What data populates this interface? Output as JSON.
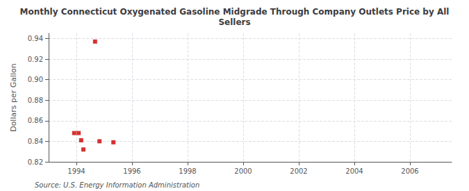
{
  "chart_data": {
    "type": "scatter",
    "title": "Monthly Connecticut Oxygenated Gasoline Midgrade Through Company Outlets Price by All\nSellers",
    "ylabel": "Dollars per Gallon",
    "annotations": [
      "Source: U.S. Energy Information Administration"
    ],
    "x": [
      1993.92,
      1994.08,
      1994.17,
      1994.25,
      1994.67,
      1994.83,
      1995.33
    ],
    "values": [
      0.848,
      0.848,
      0.841,
      0.832,
      0.937,
      0.84,
      0.839
    ],
    "color": "#cc0000",
    "marker": "square",
    "xlim": [
      1993.0,
      2007.5
    ],
    "xticks": [
      1994,
      1996,
      1998,
      2000,
      2002,
      2004,
      2006
    ],
    "ylim": [
      0.82,
      0.945
    ],
    "yticks": [
      0.82,
      0.84,
      0.86,
      0.88,
      {
        "value": 0.9,
        "label": "0.90"
      },
      0.92,
      0.94
    ],
    "grid": true
  }
}
